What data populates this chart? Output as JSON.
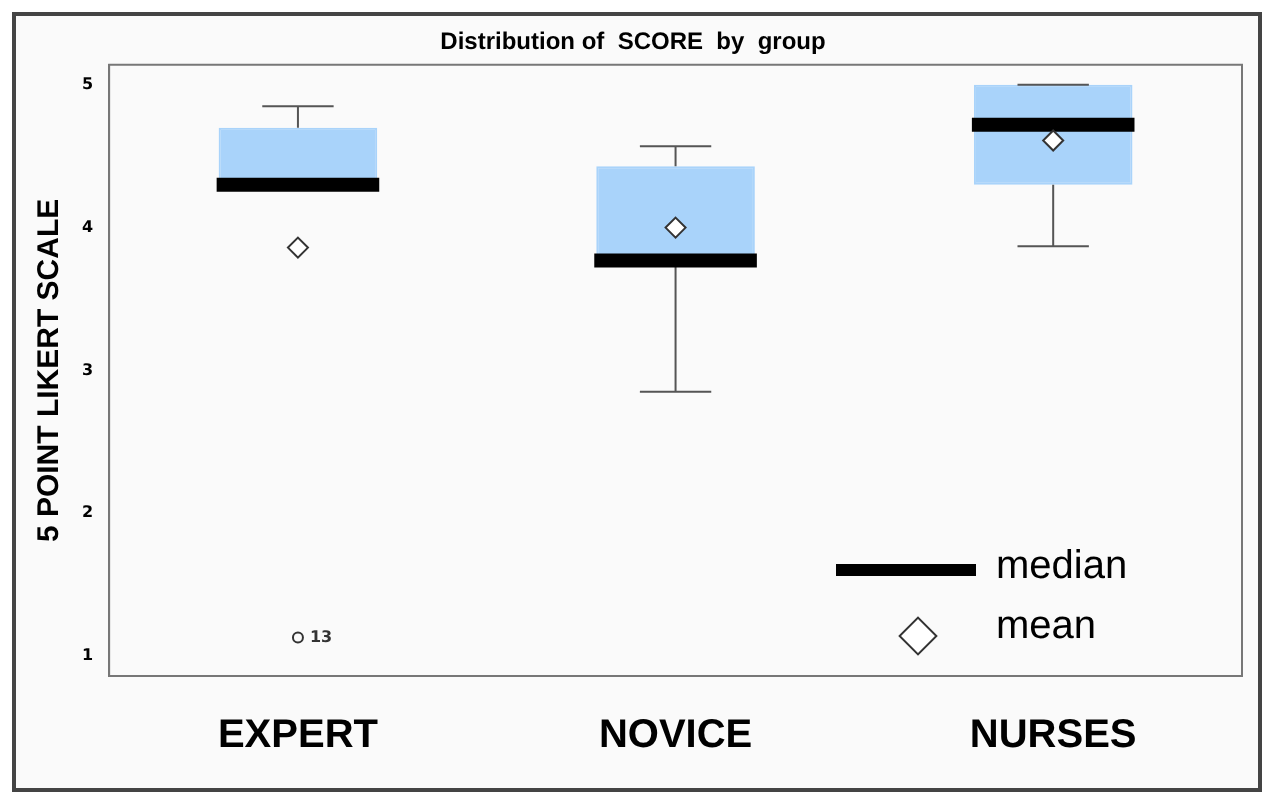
{
  "chart_data": {
    "type": "box",
    "title": "Distribution of  SCORE  by  group",
    "ylabel": "5 POINT LIKERT SCALE",
    "categories": [
      "EXPERT",
      "NOVICE",
      "NURSES"
    ],
    "color": "#a9d3fa",
    "boxes": [
      {
        "low": 4.3,
        "q1": 4.3,
        "median": 4.3,
        "q3": 4.7,
        "high": 4.85,
        "mean": 3.86,
        "outliers": [
          1.13
        ]
      },
      {
        "low": 2.85,
        "q1": 3.77,
        "median": 3.77,
        "q3": 4.43,
        "high": 4.57,
        "mean": 4.0
      },
      {
        "low": 3.87,
        "q1": 4.3,
        "median": 4.72,
        "q3": 5.0,
        "high": 5.0,
        "mean": 4.61
      }
    ],
    "ylim": [
      0.86,
      5.14
    ],
    "yticks": [
      1,
      2,
      3,
      4,
      5
    ],
    "grid": false,
    "annotations": [
      "13",
      "median",
      "mean"
    ]
  }
}
